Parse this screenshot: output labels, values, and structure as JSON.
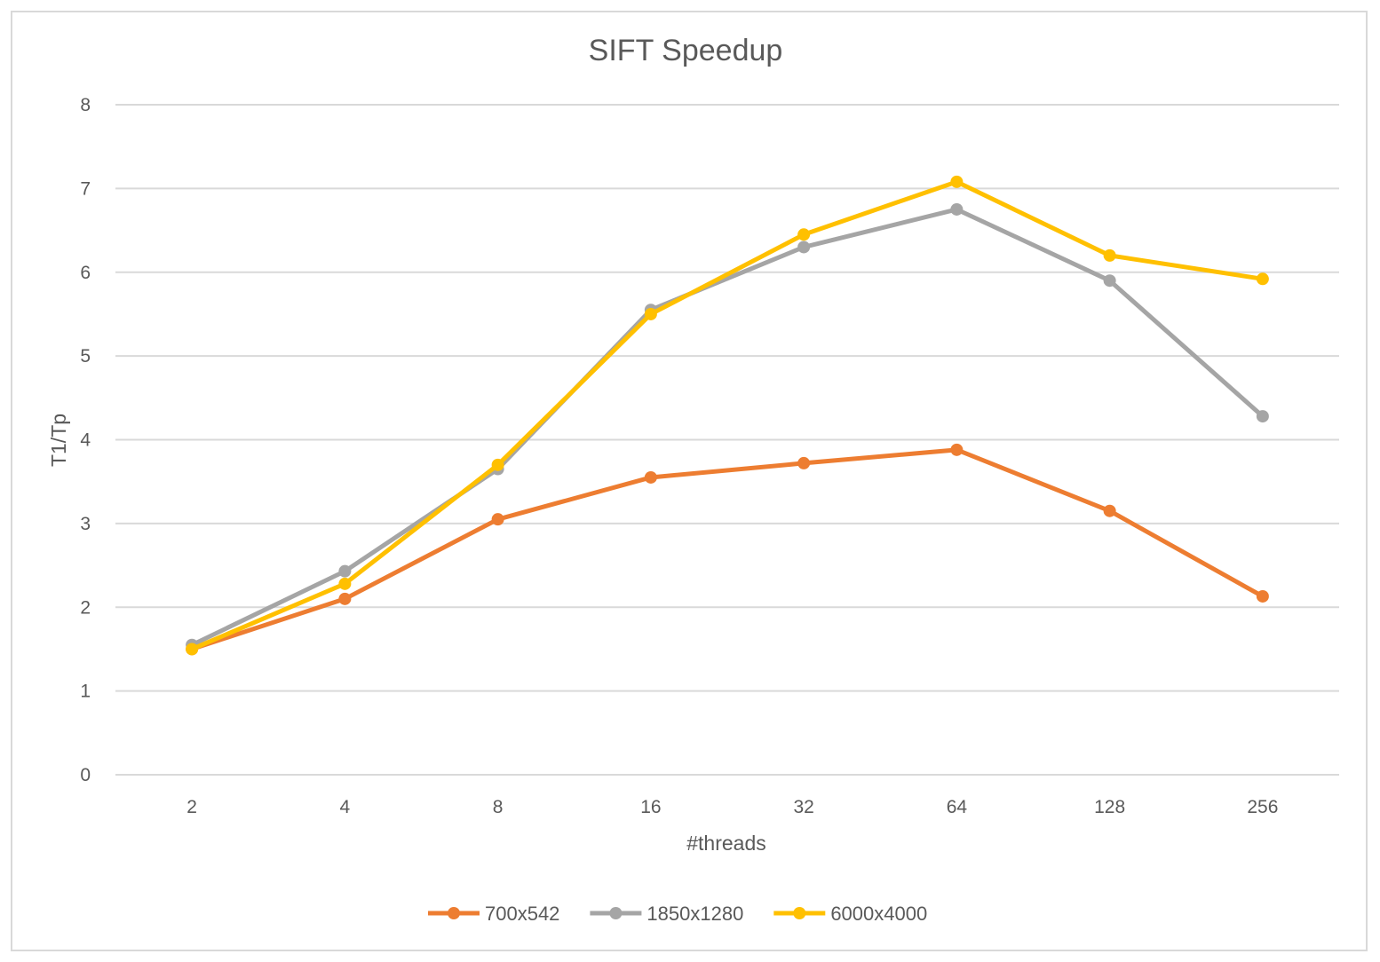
{
  "chart_data": {
    "type": "line",
    "title": "SIFT Speedup",
    "xlabel": "#threads",
    "ylabel": "T1/Tp",
    "categories": [
      "2",
      "4",
      "8",
      "16",
      "32",
      "64",
      "128",
      "256"
    ],
    "ylim": [
      0,
      8
    ],
    "yticks": [
      "0",
      "1",
      "2",
      "3",
      "4",
      "5",
      "6",
      "7",
      "8"
    ],
    "grid": true,
    "legend_position": "bottom",
    "series": [
      {
        "name": "700x542",
        "color": "#ed7d31",
        "values": [
          1.5,
          2.1,
          3.05,
          3.55,
          3.72,
          3.88,
          3.15,
          2.13
        ]
      },
      {
        "name": "1850x1280",
        "color": "#a5a5a5",
        "values": [
          1.55,
          2.43,
          3.65,
          5.55,
          6.3,
          6.75,
          5.9,
          4.28
        ]
      },
      {
        "name": "6000x4000",
        "color": "#ffc000",
        "values": [
          1.5,
          2.28,
          3.7,
          5.5,
          6.45,
          7.08,
          6.2,
          5.92
        ]
      }
    ]
  }
}
